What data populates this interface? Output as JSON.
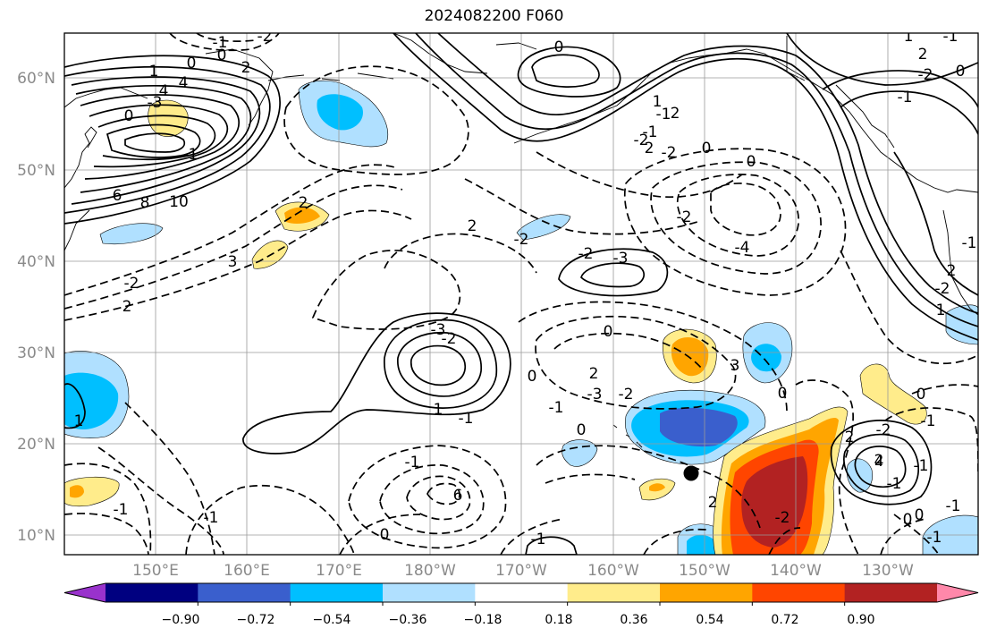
{
  "title": "2024082200 F060",
  "map": {
    "lon_ticks": [
      "150°E",
      "160°E",
      "170°E",
      "180°W",
      "170°W",
      "160°W",
      "150°W",
      "140°W",
      "130°W"
    ],
    "lat_ticks": [
      "60°N",
      "50°N",
      "40°N",
      "30°N",
      "20°N",
      "10°N"
    ],
    "marker": "storm-position",
    "contour_labels": [
      "-1",
      "0",
      "2",
      "1",
      "0",
      "-2",
      "4",
      "-3",
      "0",
      "-1",
      "4",
      "6",
      "8",
      "10",
      "3",
      "2",
      "-2",
      "2",
      "-3",
      "-2",
      "2",
      "-2",
      "-1",
      "2",
      "-2",
      "0",
      "0",
      "-2",
      "-4",
      "-2",
      "-3",
      "0",
      "1",
      "2",
      "0",
      "-2",
      "-1",
      "1",
      "-1",
      "2",
      "3",
      "0",
      "-1",
      "6",
      "4",
      "2",
      "-2",
      "2",
      "0",
      "-1",
      "2",
      "-2",
      "0",
      "-1",
      "-1",
      "-1",
      "1",
      "2",
      "-2",
      "1",
      "-1",
      "-1",
      "0",
      "-1",
      "-2",
      "-1",
      "1",
      "2",
      "0",
      "0",
      "-1",
      "-2",
      "-3",
      "0",
      "-1",
      "-1",
      "0",
      "-1"
    ]
  },
  "colorbar": {
    "ticks": [
      "−0.90",
      "−0.72",
      "−0.54",
      "−0.36",
      "−0.18",
      "0.18",
      "0.36",
      "0.54",
      "0.72",
      "0.90"
    ],
    "colors": [
      "#9932cc",
      "#000080",
      "#3a5fcd",
      "#00bfff",
      "#b0e0ff",
      "#ffffff",
      "#ffec8b",
      "#ffa500",
      "#ff4500",
      "#b22222",
      "#ff88aa"
    ]
  }
}
